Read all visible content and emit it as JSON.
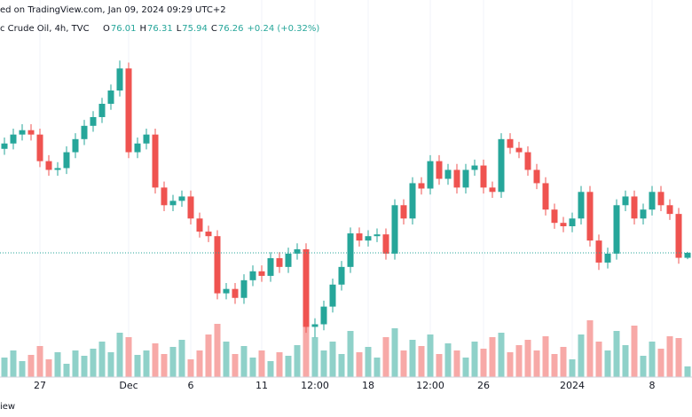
{
  "header": {
    "published": "ed on TradingView.com, Jan 09, 2024 09:29 UTC+2",
    "symbol": "c Crude Oil, 4h, TVC",
    "footer": "iew"
  },
  "chart_data": {
    "type": "candlestick",
    "legend": {
      "open_label": "O",
      "open": 76.01,
      "high_label": "H",
      "high": 76.31,
      "low_label": "L",
      "low": 75.94,
      "close_label": "C",
      "close": 76.26,
      "change": "+0.24 (+0.32%)"
    },
    "up_color": "#26a69a",
    "down_color": "#ef5350",
    "up_volume_color": "#8fd1c9",
    "down_volume_color": "#f7a9a7",
    "ylim": [
      70,
      89
    ],
    "volume_lim": [
      0,
      100
    ],
    "categories": [
      null,
      null,
      null,
      null,
      "27",
      null,
      null,
      null,
      null,
      null,
      null,
      null,
      null,
      null,
      "Dec",
      null,
      null,
      null,
      null,
      null,
      null,
      "6",
      null,
      null,
      null,
      null,
      null,
      null,
      null,
      "11",
      null,
      null,
      null,
      null,
      null,
      "12:00",
      null,
      null,
      null,
      null,
      null,
      "18",
      null,
      null,
      null,
      null,
      null,
      null,
      "12:00",
      null,
      null,
      null,
      null,
      null,
      "26",
      null,
      null,
      null,
      null,
      null,
      null,
      null,
      null,
      null,
      "2024",
      null,
      null,
      null,
      null,
      null,
      null,
      null,
      null,
      "8",
      null,
      null,
      null,
      null
    ],
    "open": [
      81.5,
      81.77,
      82.22,
      82.44,
      82.22,
      80.88,
      80.44,
      80.53,
      81.33,
      81.99,
      82.66,
      83.1,
      83.77,
      84.44,
      85.55,
      81.33,
      81.77,
      82.22,
      79.55,
      78.66,
      78.88,
      79.1,
      77.99,
      77.33,
      77.1,
      74.22,
      74.44,
      73.99,
      74.88,
      75.33,
      75.1,
      75.99,
      75.55,
      76.22,
      76.44,
      72.53,
      72.66,
      73.55,
      74.66,
      75.55,
      77.24,
      76.88,
      77.1,
      77.19,
      76.22,
      78.66,
      77.99,
      79.77,
      79.5,
      80.88,
      79.99,
      80.44,
      79.55,
      80.44,
      80.66,
      79.55,
      79.33,
      81.99,
      81.55,
      81.33,
      80.44,
      79.77,
      78.44,
      77.77,
      77.6,
      77.99,
      79.33,
      76.88,
      75.77,
      76.22,
      78.66,
      79.1,
      77.99,
      78.44,
      79.33,
      78.66,
      78.22,
      76.01
    ],
    "high": [
      82.07,
      82.52,
      82.74,
      82.74,
      82.52,
      81.18,
      80.83,
      81.63,
      82.29,
      82.96,
      83.4,
      84.07,
      84.74,
      85.95,
      85.85,
      82.07,
      82.52,
      82.52,
      79.85,
      79.18,
      79.4,
      79.4,
      78.29,
      77.63,
      77.4,
      74.74,
      74.74,
      75.18,
      75.63,
      75.63,
      76.29,
      76.29,
      76.52,
      76.74,
      76.74,
      72.96,
      73.85,
      74.96,
      75.85,
      77.54,
      77.54,
      77.4,
      77.49,
      77.49,
      78.96,
      78.96,
      80.07,
      80.07,
      81.18,
      81.18,
      80.74,
      80.74,
      80.74,
      80.96,
      80.96,
      79.85,
      82.29,
      82.29,
      81.85,
      81.63,
      80.74,
      80.07,
      78.74,
      78.07,
      78.29,
      79.63,
      79.63,
      77.18,
      76.52,
      78.96,
      79.4,
      79.4,
      78.74,
      79.63,
      79.63,
      78.96,
      78.52,
      76.31
    ],
    "low": [
      81.2,
      81.47,
      81.92,
      81.92,
      80.58,
      80.14,
      80.14,
      80.23,
      81.03,
      81.69,
      82.36,
      82.8,
      83.47,
      84.14,
      81.03,
      81.03,
      81.47,
      79.25,
      78.36,
      78.36,
      78.58,
      77.69,
      77.03,
      76.8,
      73.92,
      73.92,
      73.69,
      73.69,
      74.58,
      74.8,
      74.8,
      75.25,
      75.25,
      75.92,
      72.23,
      72.0,
      72.36,
      73.25,
      74.36,
      75.25,
      76.58,
      76.58,
      76.8,
      75.92,
      75.92,
      77.69,
      77.69,
      79.2,
      79.2,
      79.69,
      79.69,
      79.25,
      79.25,
      80.14,
      79.25,
      79.03,
      79.03,
      81.25,
      81.03,
      80.14,
      79.47,
      78.14,
      77.47,
      77.3,
      77.3,
      77.69,
      76.58,
      75.4,
      75.47,
      75.92,
      78.36,
      77.69,
      77.69,
      78.14,
      78.36,
      77.92,
      75.71,
      75.94
    ],
    "close": [
      81.77,
      82.22,
      82.44,
      82.22,
      80.88,
      80.44,
      80.53,
      81.33,
      81.99,
      82.66,
      83.1,
      83.77,
      84.44,
      85.55,
      81.33,
      81.77,
      82.22,
      79.55,
      78.66,
      78.88,
      79.1,
      77.99,
      77.33,
      77.1,
      74.22,
      74.44,
      73.99,
      74.88,
      75.33,
      75.1,
      75.99,
      75.55,
      76.22,
      76.44,
      72.53,
      72.66,
      73.55,
      74.66,
      75.55,
      77.24,
      76.88,
      77.1,
      77.19,
      76.22,
      78.66,
      77.99,
      79.77,
      79.5,
      80.88,
      79.99,
      80.44,
      79.55,
      80.44,
      80.66,
      79.55,
      79.33,
      81.99,
      81.55,
      81.33,
      80.44,
      79.77,
      78.44,
      77.77,
      77.6,
      77.99,
      79.33,
      76.88,
      75.77,
      76.22,
      78.66,
      79.1,
      77.99,
      78.44,
      79.33,
      78.66,
      78.22,
      76.01,
      76.26
    ],
    "volume": [
      22,
      30,
      18,
      25,
      35,
      20,
      28,
      15,
      30,
      24,
      32,
      40,
      28,
      50,
      45,
      25,
      30,
      38,
      26,
      34,
      42,
      20,
      30,
      48,
      60,
      40,
      26,
      35,
      22,
      30,
      18,
      28,
      24,
      36,
      62,
      45,
      30,
      40,
      26,
      52,
      28,
      34,
      22,
      45,
      55,
      30,
      42,
      35,
      48,
      26,
      38,
      30,
      22,
      40,
      32,
      45,
      50,
      28,
      36,
      42,
      30,
      46,
      26,
      34,
      20,
      48,
      64,
      40,
      30,
      52,
      36,
      58,
      24,
      40,
      32,
      46,
      44,
      12
    ]
  }
}
